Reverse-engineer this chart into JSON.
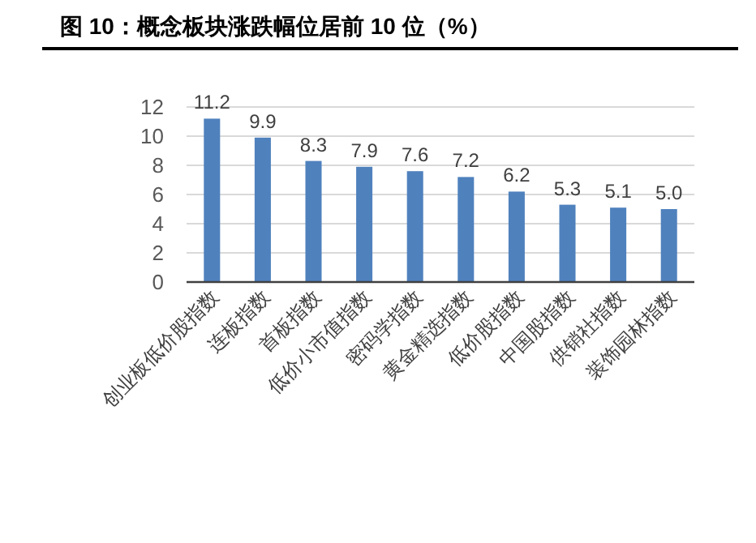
{
  "chart_data": {
    "type": "bar",
    "title": "图 10：概念板块涨跌幅位居前 10 位（%）",
    "categories": [
      "创业板低价股指数",
      "连板指数",
      "首板指数",
      "低价小市值指数",
      "密码学指数",
      "黄金精选指数",
      "低价股指数",
      "中国股指数",
      "供销社指数",
      "装饰园林指数"
    ],
    "values": [
      11.2,
      9.9,
      8.3,
      7.9,
      7.6,
      7.2,
      6.2,
      5.3,
      5.1,
      5.0
    ],
    "value_labels": [
      "11.2",
      "9.9",
      "8.3",
      "7.9",
      "7.6",
      "7.2",
      "6.2",
      "5.3",
      "5.1",
      "5.0"
    ],
    "color": "#4f81bd",
    "ylim": [
      0,
      12
    ],
    "yticks": [
      0,
      2,
      4,
      6,
      8,
      10,
      12
    ],
    "grid": "y"
  }
}
